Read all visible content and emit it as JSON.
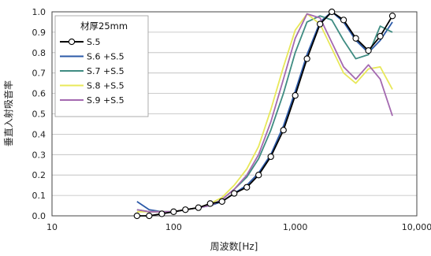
{
  "chart_data": {
    "type": "line",
    "xlabel": "周波数[Hz]",
    "ylabel": "垂直入射吸音率",
    "x_scale": "log",
    "xlim": [
      10,
      10000
    ],
    "ylim": [
      0,
      1
    ],
    "x_ticks": [
      10,
      100,
      1000,
      10000
    ],
    "x_tick_labels": [
      "10",
      "100",
      "1,000",
      "10,000"
    ],
    "y_ticks": [
      0,
      0.1,
      0.2,
      0.3,
      0.4,
      0.5,
      0.6,
      0.7,
      0.8,
      0.9,
      1.0
    ],
    "y_tick_labels": [
      "0.0",
      "0.1",
      "0.2",
      "0.3",
      "0.4",
      "0.5",
      "0.6",
      "0.7",
      "0.8",
      "0.9",
      "1.0"
    ],
    "grid": "horizontal",
    "legend": {
      "title": "材厚25mm",
      "placement": "top-left"
    },
    "series": [
      {
        "name": "S.5",
        "color": "#000000",
        "marker": "circle",
        "points": [
          [
            50,
            0.0
          ],
          [
            63,
            0.0
          ],
          [
            80,
            0.01
          ],
          [
            100,
            0.02
          ],
          [
            125,
            0.03
          ],
          [
            160,
            0.04
          ],
          [
            200,
            0.06
          ],
          [
            250,
            0.07
          ],
          [
            315,
            0.11
          ],
          [
            400,
            0.14
          ],
          [
            500,
            0.2
          ],
          [
            630,
            0.29
          ],
          [
            800,
            0.42
          ],
          [
            1000,
            0.59
          ],
          [
            1250,
            0.77
          ],
          [
            1600,
            0.94
          ],
          [
            2000,
            1.0
          ],
          [
            2500,
            0.96
          ],
          [
            3150,
            0.87
          ],
          [
            4000,
            0.81
          ],
          [
            5000,
            0.88
          ],
          [
            6300,
            0.98
          ]
        ]
      },
      {
        "name": "S.6 +S.5",
        "color": "#2c5aa8",
        "marker": "none",
        "points": [
          [
            50,
            0.07
          ],
          [
            63,
            0.03
          ],
          [
            80,
            0.02
          ],
          [
            100,
            0.02
          ],
          [
            125,
            0.03
          ],
          [
            160,
            0.04
          ],
          [
            200,
            0.05
          ],
          [
            250,
            0.07
          ],
          [
            315,
            0.11
          ],
          [
            400,
            0.15
          ],
          [
            500,
            0.21
          ],
          [
            630,
            0.3
          ],
          [
            800,
            0.44
          ],
          [
            1000,
            0.61
          ],
          [
            1250,
            0.79
          ],
          [
            1600,
            0.95
          ],
          [
            2000,
            1.0
          ],
          [
            2500,
            0.95
          ],
          [
            3150,
            0.86
          ],
          [
            4000,
            0.8
          ],
          [
            5000,
            0.86
          ],
          [
            6300,
            0.95
          ]
        ]
      },
      {
        "name": "S.7 +S.5",
        "color": "#3f8c82",
        "marker": "none",
        "points": [
          [
            50,
            0.03
          ],
          [
            63,
            0.02
          ],
          [
            80,
            0.02
          ],
          [
            100,
            0.02
          ],
          [
            125,
            0.03
          ],
          [
            160,
            0.04
          ],
          [
            200,
            0.05
          ],
          [
            250,
            0.08
          ],
          [
            315,
            0.13
          ],
          [
            400,
            0.19
          ],
          [
            500,
            0.28
          ],
          [
            630,
            0.42
          ],
          [
            800,
            0.6
          ],
          [
            1000,
            0.8
          ],
          [
            1250,
            0.95
          ],
          [
            1600,
            0.98
          ],
          [
            2000,
            0.96
          ],
          [
            2500,
            0.86
          ],
          [
            3150,
            0.77
          ],
          [
            4000,
            0.79
          ],
          [
            5000,
            0.93
          ],
          [
            6300,
            0.9
          ]
        ]
      },
      {
        "name": "S.8 +S.5",
        "color": "#e8e85a",
        "marker": "none",
        "points": [
          [
            50,
            0.02
          ],
          [
            63,
            0.02
          ],
          [
            80,
            0.02
          ],
          [
            100,
            0.02
          ],
          [
            125,
            0.03
          ],
          [
            160,
            0.04
          ],
          [
            200,
            0.06
          ],
          [
            250,
            0.09
          ],
          [
            315,
            0.15
          ],
          [
            400,
            0.23
          ],
          [
            500,
            0.34
          ],
          [
            630,
            0.52
          ],
          [
            800,
            0.73
          ],
          [
            1000,
            0.91
          ],
          [
            1250,
            0.99
          ],
          [
            1600,
            0.94
          ],
          [
            2000,
            0.82
          ],
          [
            2500,
            0.7
          ],
          [
            3150,
            0.65
          ],
          [
            4000,
            0.72
          ],
          [
            5000,
            0.73
          ],
          [
            6300,
            0.62
          ]
        ]
      },
      {
        "name": "S.9 +S.5",
        "color": "#a469b0",
        "marker": "none",
        "points": [
          [
            50,
            0.03
          ],
          [
            63,
            0.02
          ],
          [
            80,
            0.02
          ],
          [
            100,
            0.02
          ],
          [
            125,
            0.03
          ],
          [
            160,
            0.04
          ],
          [
            200,
            0.05
          ],
          [
            250,
            0.08
          ],
          [
            315,
            0.13
          ],
          [
            400,
            0.2
          ],
          [
            500,
            0.3
          ],
          [
            630,
            0.46
          ],
          [
            800,
            0.67
          ],
          [
            1000,
            0.87
          ],
          [
            1250,
            0.99
          ],
          [
            1600,
            0.97
          ],
          [
            2000,
            0.85
          ],
          [
            2500,
            0.73
          ],
          [
            3150,
            0.67
          ],
          [
            4000,
            0.74
          ],
          [
            5000,
            0.67
          ],
          [
            6300,
            0.49
          ]
        ]
      }
    ]
  }
}
